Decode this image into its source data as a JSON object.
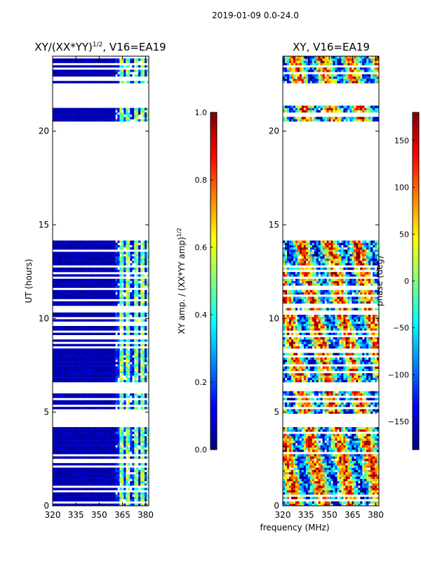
{
  "suptitle": "2019-01-09 0.0-24.0",
  "shared_xlabel": "frequency (MHz)",
  "colors": {
    "jet": [
      "#00007f",
      "#0000ff",
      "#007fff",
      "#00ffff",
      "#7fff7f",
      "#ffff00",
      "#ff7f00",
      "#ff0000",
      "#7f0000"
    ],
    "flag_blank": "#ffffff"
  },
  "chart_data": [
    {
      "type": "heatmap",
      "title": "XY/(XX*YY)",
      "title_sup": "1/2",
      "title_suffix": ", V16=EA19",
      "xlabel": "",
      "ylabel": "UT (hours)",
      "xlim": [
        320,
        382
      ],
      "ylim": [
        0,
        24
      ],
      "xticks": [
        320,
        335,
        350,
        365,
        380
      ],
      "yticks": [
        0,
        5,
        10,
        15,
        20
      ],
      "colorbar": {
        "label": "XY amp. / (XX*YY amp)",
        "label_sup": "1/2",
        "range": [
          0.0,
          1.0
        ],
        "ticks": [
          "0.0",
          "0.2",
          "0.4",
          "0.6",
          "0.8",
          "1.0"
        ],
        "tick_values": [
          0.0,
          0.2,
          0.4,
          0.6,
          0.8,
          1.0
        ]
      },
      "data_bands_hours": [
        [
          0.0,
          4.2
        ],
        [
          4.9,
          6.1
        ],
        [
          6.6,
          9.0
        ],
        [
          9.1,
          14.1
        ],
        [
          20.5,
          21.3
        ],
        [
          22.5,
          24.0
        ]
      ],
      "low_value_band_mhz": [
        320,
        360
      ],
      "bright_channels_mhz": [
        364,
        368,
        373,
        377,
        381
      ],
      "value_range_data": [
        0.0,
        0.6
      ]
    },
    {
      "type": "heatmap",
      "title": "XY, V16=EA19",
      "xlabel": "",
      "ylabel": "",
      "xlim": [
        320,
        382
      ],
      "ylim": [
        0,
        24
      ],
      "xticks": [
        320,
        335,
        350,
        365,
        380
      ],
      "yticks": [
        0,
        5,
        10,
        15,
        20
      ],
      "colorbar": {
        "label": "phase (deg)",
        "range": [
          -180,
          180
        ],
        "ticks": [
          "−150",
          "−100",
          "−50",
          "0",
          "50",
          "100",
          "150"
        ],
        "tick_values": [
          -150,
          -100,
          -50,
          0,
          50,
          100,
          150
        ]
      },
      "data_bands_hours": [
        [
          0.0,
          4.2
        ],
        [
          4.9,
          6.1
        ],
        [
          6.6,
          9.0
        ],
        [
          9.1,
          14.1
        ],
        [
          20.5,
          21.3
        ],
        [
          22.5,
          24.0
        ]
      ],
      "value_range_data": [
        -180,
        180
      ]
    }
  ]
}
